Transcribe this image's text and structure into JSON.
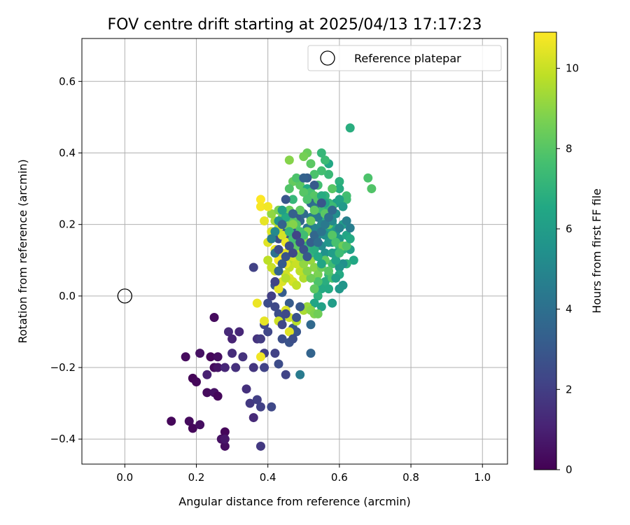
{
  "chart_data": {
    "type": "scatter",
    "title": "FOV centre drift starting at 2025/04/13 17:17:23",
    "xlabel": "Angular distance from reference (arcmin)",
    "ylabel": "Rotation from reference (arcmin)",
    "xlim": [
      -0.12,
      1.07
    ],
    "ylim": [
      -0.47,
      0.72
    ],
    "xticks": [
      0.0,
      0.2,
      0.4,
      0.6,
      0.8,
      1.0
    ],
    "xtick_labels": [
      "0.0",
      "0.2",
      "0.4",
      "0.6",
      "0.8",
      "1.0"
    ],
    "yticks": [
      -0.4,
      -0.2,
      0.0,
      0.2,
      0.4,
      0.6
    ],
    "ytick_labels": [
      "−0.4",
      "−0.2",
      "0.0",
      "0.2",
      "0.4",
      "0.6"
    ],
    "grid": true,
    "legend": {
      "position": "top-right",
      "entries": [
        {
          "label": "Reference platepar",
          "marker": "open-circle",
          "x": 0.0,
          "y": 0.0
        }
      ]
    },
    "colorbar": {
      "label": "Hours from first FF file",
      "colormap": "viridis",
      "range": [
        0,
        10.9
      ],
      "ticks": [
        0,
        2,
        4,
        6,
        8,
        10
      ],
      "tick_labels": [
        "0",
        "2",
        "4",
        "6",
        "8",
        "10"
      ]
    },
    "points": [
      [
        0.13,
        -0.35,
        0.2
      ],
      [
        0.18,
        -0.35,
        0.3
      ],
      [
        0.19,
        -0.37,
        0.2
      ],
      [
        0.21,
        -0.36,
        0.4
      ],
      [
        0.17,
        -0.17,
        0.3
      ],
      [
        0.19,
        -0.23,
        0.1
      ],
      [
        0.2,
        -0.24,
        0.2
      ],
      [
        0.21,
        -0.16,
        0.5
      ],
      [
        0.23,
        -0.27,
        0.3
      ],
      [
        0.24,
        -0.17,
        0.2
      ],
      [
        0.25,
        -0.2,
        0.3
      ],
      [
        0.26,
        -0.17,
        0.4
      ],
      [
        0.25,
        -0.27,
        0.5
      ],
      [
        0.26,
        -0.28,
        0.2
      ],
      [
        0.25,
        -0.06,
        0.3
      ],
      [
        0.26,
        -0.2,
        0.6
      ],
      [
        0.27,
        -0.4,
        0.5
      ],
      [
        0.28,
        -0.38,
        0.2
      ],
      [
        0.28,
        -0.42,
        0.4
      ],
      [
        0.28,
        -0.4,
        0.7
      ],
      [
        0.23,
        -0.22,
        1.0
      ],
      [
        0.28,
        -0.2,
        1.2
      ],
      [
        0.29,
        -0.1,
        1.3
      ],
      [
        0.3,
        -0.12,
        1.1
      ],
      [
        0.3,
        -0.16,
        1.4
      ],
      [
        0.31,
        -0.2,
        1.5
      ],
      [
        0.32,
        -0.1,
        1.2
      ],
      [
        0.33,
        -0.17,
        1.6
      ],
      [
        0.34,
        -0.26,
        1.5
      ],
      [
        0.35,
        -0.3,
        1.8
      ],
      [
        0.36,
        -0.34,
        1.3
      ],
      [
        0.37,
        -0.29,
        2.0
      ],
      [
        0.36,
        -0.2,
        1.7
      ],
      [
        0.37,
        -0.12,
        1.6
      ],
      [
        0.38,
        -0.12,
        1.9
      ],
      [
        0.38,
        -0.31,
        2.1
      ],
      [
        0.38,
        -0.42,
        1.8
      ],
      [
        0.39,
        -0.2,
        2.2
      ],
      [
        0.39,
        -0.16,
        2.0
      ],
      [
        0.4,
        -0.1,
        2.3
      ],
      [
        0.41,
        -0.31,
        2.4
      ],
      [
        0.42,
        -0.16,
        2.1
      ],
      [
        0.43,
        -0.19,
        2.5
      ],
      [
        0.44,
        -0.12,
        2.6
      ],
      [
        0.45,
        -0.22,
        2.2
      ],
      [
        0.44,
        -0.06,
        2.7
      ],
      [
        0.46,
        -0.13,
        2.8
      ],
      [
        0.47,
        -0.09,
        3.0
      ],
      [
        0.48,
        -0.1,
        2.9
      ],
      [
        0.49,
        -0.22,
        4.5
      ],
      [
        0.52,
        -0.16,
        3.5
      ],
      [
        0.39,
        -0.08,
        2.3
      ],
      [
        0.4,
        -0.02,
        2.5
      ],
      [
        0.42,
        -0.03,
        2.4
      ],
      [
        0.43,
        -0.05,
        2.6
      ],
      [
        0.36,
        0.08,
        2.1
      ],
      [
        0.42,
        0.03,
        3.0
      ],
      [
        0.44,
        0.01,
        3.2
      ],
      [
        0.46,
        -0.02,
        3.1
      ],
      [
        0.52,
        -0.08,
        3.7
      ],
      [
        0.63,
        0.47,
        6.8
      ],
      [
        0.68,
        0.33,
        7.8
      ],
      [
        0.69,
        0.3,
        7.9
      ],
      [
        0.62,
        0.28,
        7.6
      ],
      [
        0.62,
        0.27,
        7.5
      ],
      [
        0.6,
        0.32,
        6.9
      ],
      [
        0.6,
        0.3,
        6.7
      ],
      [
        0.59,
        0.26,
        6.0
      ],
      [
        0.57,
        0.37,
        6.5
      ],
      [
        0.57,
        0.34,
        7.3
      ],
      [
        0.56,
        0.38,
        7.4
      ],
      [
        0.55,
        0.4,
        7.2
      ],
      [
        0.55,
        0.35,
        7.6
      ],
      [
        0.53,
        0.34,
        7.8
      ],
      [
        0.52,
        0.37,
        8.1
      ],
      [
        0.51,
        0.4,
        8.4
      ],
      [
        0.5,
        0.39,
        8.6
      ],
      [
        0.46,
        0.38,
        8.9
      ],
      [
        0.47,
        0.32,
        8.3
      ],
      [
        0.49,
        0.31,
        8.1
      ],
      [
        0.51,
        0.3,
        6.5
      ],
      [
        0.52,
        0.29,
        7.7
      ],
      [
        0.53,
        0.28,
        8.0
      ],
      [
        0.54,
        0.26,
        7.6
      ],
      [
        0.55,
        0.24,
        7.4
      ],
      [
        0.56,
        0.22,
        6.8
      ],
      [
        0.57,
        0.24,
        7.1
      ],
      [
        0.58,
        0.2,
        6.3
      ],
      [
        0.59,
        0.18,
        5.6
      ],
      [
        0.6,
        0.16,
        5.8
      ],
      [
        0.61,
        0.2,
        6.0
      ],
      [
        0.62,
        0.17,
        6.4
      ],
      [
        0.63,
        0.13,
        6.1
      ],
      [
        0.64,
        0.1,
        6.5
      ],
      [
        0.62,
        0.09,
        6.9
      ],
      [
        0.61,
        0.13,
        7.0
      ],
      [
        0.6,
        0.14,
        7.3
      ],
      [
        0.58,
        0.09,
        7.5
      ],
      [
        0.57,
        0.06,
        7.2
      ],
      [
        0.56,
        0.04,
        6.8
      ],
      [
        0.55,
        0.02,
        6.6
      ],
      [
        0.54,
        0.0,
        7.0
      ],
      [
        0.53,
        -0.02,
        6.4
      ],
      [
        0.55,
        -0.03,
        6.2
      ],
      [
        0.58,
        -0.02,
        6.0
      ],
      [
        0.6,
        0.02,
        5.8
      ],
      [
        0.61,
        0.09,
        5.4
      ],
      [
        0.6,
        0.08,
        5.6
      ],
      [
        0.59,
        0.12,
        6.2
      ],
      [
        0.58,
        0.15,
        5.9
      ],
      [
        0.57,
        0.18,
        6.1
      ],
      [
        0.56,
        0.12,
        5.5
      ],
      [
        0.55,
        0.14,
        5.2
      ],
      [
        0.54,
        0.17,
        5.0
      ],
      [
        0.53,
        0.19,
        4.8
      ],
      [
        0.52,
        0.22,
        4.5
      ],
      [
        0.51,
        0.19,
        4.2
      ],
      [
        0.5,
        0.23,
        3.8
      ],
      [
        0.49,
        0.21,
        3.5
      ],
      [
        0.48,
        0.22,
        3.2
      ],
      [
        0.47,
        0.19,
        3.0
      ],
      [
        0.46,
        0.17,
        2.9
      ],
      [
        0.45,
        0.19,
        3.1
      ],
      [
        0.44,
        0.17,
        2.8
      ],
      [
        0.43,
        0.16,
        2.6
      ],
      [
        0.51,
        0.33,
        3.2
      ],
      [
        0.52,
        0.26,
        3.6
      ],
      [
        0.53,
        0.25,
        4.0
      ],
      [
        0.54,
        0.22,
        4.4
      ],
      [
        0.55,
        0.2,
        4.9
      ],
      [
        0.56,
        0.17,
        5.3
      ],
      [
        0.57,
        0.15,
        5.7
      ],
      [
        0.58,
        0.12,
        6.0
      ],
      [
        0.59,
        0.1,
        6.3
      ],
      [
        0.6,
        0.06,
        6.6
      ],
      [
        0.56,
        0.28,
        7.0
      ],
      [
        0.57,
        0.26,
        7.2
      ],
      [
        0.58,
        0.25,
        7.4
      ],
      [
        0.54,
        0.27,
        7.9
      ],
      [
        0.53,
        0.24,
        8.2
      ],
      [
        0.52,
        0.21,
        8.5
      ],
      [
        0.51,
        0.18,
        8.8
      ],
      [
        0.5,
        0.16,
        9.0
      ],
      [
        0.49,
        0.14,
        9.3
      ],
      [
        0.48,
        0.12,
        9.5
      ],
      [
        0.47,
        0.1,
        9.7
      ],
      [
        0.46,
        0.08,
        9.9
      ],
      [
        0.45,
        0.06,
        10.1
      ],
      [
        0.44,
        0.04,
        10.3
      ],
      [
        0.43,
        0.02,
        10.5
      ],
      [
        0.52,
        0.1,
        9.2
      ],
      [
        0.53,
        0.08,
        9.0
      ],
      [
        0.54,
        0.06,
        8.7
      ],
      [
        0.55,
        0.08,
        8.4
      ],
      [
        0.56,
        0.1,
        8.2
      ],
      [
        0.57,
        0.07,
        8.0
      ],
      [
        0.58,
        0.05,
        7.8
      ],
      [
        0.5,
        0.05,
        9.6
      ],
      [
        0.49,
        0.07,
        9.8
      ],
      [
        0.48,
        0.09,
        10.0
      ],
      [
        0.47,
        0.11,
        10.2
      ],
      [
        0.46,
        0.13,
        10.4
      ],
      [
        0.45,
        0.15,
        10.6
      ],
      [
        0.44,
        0.17,
        10.2
      ],
      [
        0.43,
        0.19,
        9.9
      ],
      [
        0.42,
        0.21,
        9.4
      ],
      [
        0.41,
        0.23,
        9.1
      ],
      [
        0.43,
        0.24,
        8.7
      ],
      [
        0.44,
        0.22,
        8.5
      ],
      [
        0.45,
        0.2,
        8.6
      ],
      [
        0.46,
        0.23,
        8.3
      ],
      [
        0.47,
        0.21,
        8.0
      ],
      [
        0.48,
        0.2,
        7.9
      ],
      [
        0.49,
        0.18,
        7.7
      ],
      [
        0.5,
        0.17,
        7.5
      ],
      [
        0.51,
        0.14,
        7.3
      ],
      [
        0.52,
        0.12,
        7.1
      ],
      [
        0.53,
        0.13,
        6.8
      ],
      [
        0.54,
        0.11,
        6.6
      ],
      [
        0.55,
        0.09,
        6.4
      ],
      [
        0.38,
        0.27,
        10.9
      ],
      [
        0.38,
        0.25,
        10.8
      ],
      [
        0.39,
        0.21,
        10.5
      ],
      [
        0.4,
        0.25,
        10.7
      ],
      [
        0.4,
        0.15,
        10.4
      ],
      [
        0.41,
        0.18,
        10.3
      ],
      [
        0.42,
        0.13,
        10.6
      ],
      [
        0.43,
        0.1,
        10.8
      ],
      [
        0.44,
        0.12,
        10.5
      ],
      [
        0.42,
        0.07,
        10.2
      ],
      [
        0.41,
        0.08,
        10.0
      ],
      [
        0.4,
        0.1,
        9.8
      ],
      [
        0.45,
        0.09,
        10.6
      ],
      [
        0.46,
        0.05,
        10.4
      ],
      [
        0.47,
        0.04,
        10.2
      ],
      [
        0.45,
        0.05,
        9.7
      ],
      [
        0.48,
        0.03,
        9.9
      ],
      [
        0.5,
        -0.04,
        9.5
      ],
      [
        0.51,
        -0.03,
        9.2
      ],
      [
        0.52,
        -0.04,
        9.0
      ],
      [
        0.53,
        -0.05,
        8.8
      ],
      [
        0.54,
        -0.05,
        8.5
      ],
      [
        0.37,
        -0.02,
        10.6
      ],
      [
        0.39,
        -0.07,
        10.5
      ],
      [
        0.43,
        -0.07,
        10.1
      ],
      [
        0.45,
        -0.04,
        10.3
      ],
      [
        0.46,
        -0.06,
        10.1
      ],
      [
        0.46,
        -0.1,
        10.4
      ],
      [
        0.48,
        -0.07,
        9.7
      ],
      [
        0.38,
        -0.17,
        10.7
      ],
      [
        0.46,
        0.24,
        8.4
      ],
      [
        0.47,
        0.2,
        8.9
      ],
      [
        0.49,
        0.24,
        8.2
      ],
      [
        0.5,
        0.29,
        8.0
      ],
      [
        0.51,
        0.27,
        7.8
      ],
      [
        0.54,
        0.31,
        7.6
      ],
      [
        0.56,
        0.23,
        8.1
      ],
      [
        0.57,
        0.2,
        8.3
      ],
      [
        0.58,
        0.17,
        8.0
      ],
      [
        0.59,
        0.15,
        7.7
      ],
      [
        0.61,
        0.14,
        8.5
      ],
      [
        0.62,
        0.14,
        7.9
      ],
      [
        0.6,
        0.12,
        7.4
      ],
      [
        0.63,
        0.16,
        6.6
      ],
      [
        0.58,
        0.3,
        8.0
      ],
      [
        0.48,
        0.33,
        7.8
      ],
      [
        0.46,
        0.3,
        7.9
      ],
      [
        0.47,
        0.27,
        7.2
      ],
      [
        0.55,
        0.28,
        6.7
      ],
      [
        0.56,
        0.26,
        6.3
      ],
      [
        0.6,
        0.27,
        6.2
      ],
      [
        0.61,
        0.25,
        5.9
      ],
      [
        0.59,
        0.23,
        5.3
      ],
      [
        0.58,
        0.21,
        5.1
      ],
      [
        0.6,
        0.19,
        4.8
      ],
      [
        0.62,
        0.21,
        4.7
      ],
      [
        0.63,
        0.19,
        4.6
      ],
      [
        0.59,
        0.05,
        6.1
      ],
      [
        0.61,
        0.03,
        5.7
      ],
      [
        0.57,
        0.02,
        6.6
      ],
      [
        0.54,
        0.04,
        7.8
      ],
      [
        0.53,
        0.02,
        8.2
      ],
      [
        0.52,
        0.05,
        8.5
      ],
      [
        0.51,
        0.07,
        8.9
      ],
      [
        0.5,
        0.09,
        9.1
      ],
      [
        0.49,
        0.11,
        8.6
      ],
      [
        0.48,
        0.14,
        8.1
      ],
      [
        0.47,
        0.16,
        7.6
      ],
      [
        0.46,
        0.18,
        7.1
      ],
      [
        0.45,
        0.22,
        6.6
      ],
      [
        0.44,
        0.24,
        6.1
      ],
      [
        0.43,
        0.21,
        5.6
      ],
      [
        0.42,
        0.18,
        5.1
      ],
      [
        0.41,
        0.16,
        4.6
      ],
      [
        0.42,
        0.12,
        4.1
      ],
      [
        0.43,
        0.07,
        3.6
      ],
      [
        0.44,
        0.09,
        3.1
      ],
      [
        0.45,
        0.11,
        2.8
      ],
      [
        0.46,
        0.14,
        2.6
      ],
      [
        0.47,
        0.12,
        2.4
      ],
      [
        0.48,
        0.17,
        2.2
      ],
      [
        0.49,
        0.15,
        2.5
      ],
      [
        0.5,
        0.13,
        2.7
      ],
      [
        0.51,
        0.11,
        3.0
      ],
      [
        0.52,
        0.15,
        3.3
      ],
      [
        0.53,
        0.17,
        3.6
      ],
      [
        0.54,
        0.15,
        3.9
      ],
      [
        0.55,
        0.18,
        4.2
      ],
      [
        0.56,
        0.2,
        4.4
      ],
      [
        0.57,
        0.22,
        4.0
      ],
      [
        0.58,
        0.24,
        3.7
      ],
      [
        0.5,
        0.33,
        3.4
      ],
      [
        0.53,
        0.31,
        3.1
      ],
      [
        0.55,
        0.26,
        2.9
      ],
      [
        0.47,
        0.23,
        3.3
      ],
      [
        0.45,
        0.27,
        2.9
      ],
      [
        0.44,
        0.2,
        3.4
      ],
      [
        0.43,
        0.13,
        2.5
      ],
      [
        0.42,
        0.04,
        2.2
      ],
      [
        0.41,
        0.0,
        2.0
      ],
      [
        0.44,
        -0.08,
        2.3
      ],
      [
        0.45,
        -0.05,
        2.4
      ],
      [
        0.47,
        -0.12,
        2.6
      ],
      [
        0.48,
        -0.06,
        2.8
      ],
      [
        0.49,
        -0.03,
        3.0
      ]
    ]
  }
}
